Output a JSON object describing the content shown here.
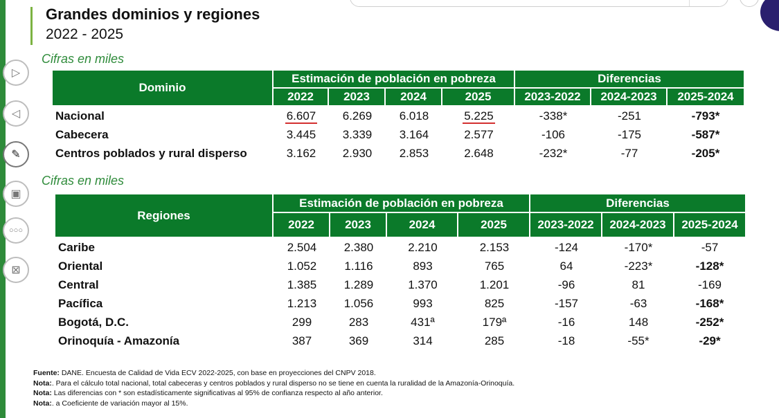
{
  "header": {
    "title": "Grandes dominios y regiones",
    "years": "2022 - 2025"
  },
  "table1": {
    "caption": "Cifras en miles",
    "row_header": "Dominio",
    "group_estimate": "Estimación de población en pobreza",
    "group_diff": "Diferencias",
    "columns": [
      "2022",
      "2023",
      "2024",
      "2025",
      "2023-2022",
      "2024-2023",
      "2025-2024"
    ],
    "rows": [
      {
        "label": "Nacional",
        "values": [
          "6.607",
          "6.269",
          "6.018",
          "5.225",
          "-338*",
          "-251",
          "-793*"
        ]
      },
      {
        "label": "Cabecera",
        "values": [
          "3.445",
          "3.339",
          "3.164",
          "2.577",
          "-106",
          "-175",
          "-587*"
        ]
      },
      {
        "label": "Centros poblados y rural disperso",
        "values": [
          "3.162",
          "2.930",
          "2.853",
          "2.648",
          "-232*",
          "-77",
          "-205*"
        ]
      }
    ]
  },
  "table2": {
    "caption": "Cifras en miles",
    "row_header": "Regiones",
    "group_estimate": "Estimación de población en pobreza",
    "group_diff": "Diferencias",
    "columns": [
      "2022",
      "2023",
      "2024",
      "2025",
      "2023-2022",
      "2024-2023",
      "2025-2024"
    ],
    "rows": [
      {
        "label": "Caribe",
        "values": [
          "2.504",
          "2.380",
          "2.210",
          "2.153",
          "-124",
          "-170*",
          "-57"
        ]
      },
      {
        "label": "Oriental",
        "values": [
          "1.052",
          "1.116",
          "893",
          "765",
          "64",
          "-223*",
          "-128*"
        ]
      },
      {
        "label": "Central",
        "values": [
          "1.385",
          "1.289",
          "1.370",
          "1.201",
          "-96",
          "81",
          "-169"
        ]
      },
      {
        "label": "Pacífica",
        "values": [
          "1.213",
          "1.056",
          "993",
          "825",
          "-157",
          "-63",
          "-168*"
        ]
      },
      {
        "label": "Bogotá, D.C.",
        "values": [
          "299",
          "283",
          "431ª",
          "179ª",
          "-16",
          "148",
          "-252*"
        ]
      },
      {
        "label": "Orinoquía - Amazonía",
        "values": [
          "387",
          "369",
          "314",
          "285",
          "-18",
          "-55*",
          "-29*"
        ]
      }
    ]
  },
  "notes": [
    {
      "key": "Fuente:",
      "text": " DANE. Encuesta de Calidad de Vida ECV 2022-2025, con base en proyecciones del CNPV 2018."
    },
    {
      "key": "Nota:",
      "text": ". Para el cálculo total nacional, total cabeceras y centros poblados y rural disperso no se tiene en cuenta la ruralidad de la Amazonía-Orinoquía."
    },
    {
      "key": "Nota:",
      "text": " Las diferencias con * son estadísticamente significativas al 95% de confianza respecto al año anterior."
    },
    {
      "key": "Nota:",
      "text": ". a Coeficiente de variación mayor al 15%."
    }
  ],
  "icons": [
    "play-icon",
    "back-icon",
    "pen-icon",
    "presenter-icon",
    "more-icon",
    "screen-share-icon"
  ],
  "colors": {
    "header_green": "#0b7a2a",
    "caption_green": "#2e8b3a",
    "underline_red": "#d32f2f"
  }
}
